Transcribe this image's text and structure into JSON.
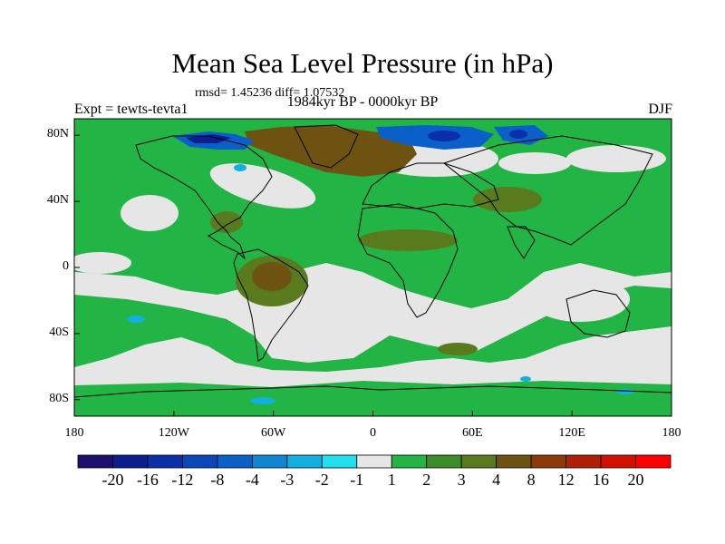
{
  "title": "Mean Sea Level Pressure (in hPa)",
  "stats": "rmsd= 1.45236 diff= 1.07532",
  "subtitle": "1984kyr BP - 0000kyr BP",
  "experiment": "Expt = tewts-tevta1",
  "season": "DJF",
  "lat_labels": [
    "80N",
    "40N",
    "0",
    "40S",
    "80S"
  ],
  "lat_values": [
    80,
    40,
    0,
    -40,
    -80
  ],
  "lon_labels": [
    "180",
    "120W",
    "60W",
    "0",
    "60E",
    "120E",
    "180"
  ],
  "lon_values": [
    -180,
    -120,
    -60,
    0,
    60,
    120,
    180
  ],
  "colorbar": {
    "labels": [
      "-20",
      "-16",
      "-12",
      "-8",
      "-4",
      "-3",
      "-2",
      "-1",
      "1",
      "2",
      "3",
      "4",
      "8",
      "12",
      "16",
      "20"
    ],
    "colors": [
      "#1c0f6e",
      "#0b1e8f",
      "#0a2fa8",
      "#0b47b8",
      "#0a60c8",
      "#0e86d2",
      "#12b0e0",
      "#22dff0",
      "#e6e6e6",
      "#22b546",
      "#3c8c2a",
      "#5a7a1e",
      "#6e5212",
      "#8c3a0a",
      "#b01e05",
      "#d40f00",
      "#ff0000"
    ]
  },
  "colors": {
    "background": "#e6e6e6",
    "land_outline": "#000000"
  }
}
